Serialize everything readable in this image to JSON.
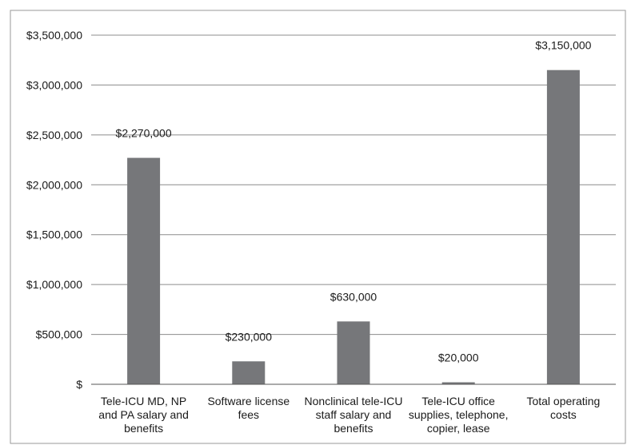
{
  "chart_data": {
    "type": "bar",
    "title": "",
    "xlabel": "",
    "ylabel": "",
    "categories": [
      [
        "Tele-ICU MD, NP",
        "and PA salary and",
        "benefits"
      ],
      [
        "Software license",
        "fees"
      ],
      [
        "Nonclinical tele-ICU",
        "staff salary and",
        "benefits"
      ],
      [
        "Tele-ICU office",
        "supplies, telephone,",
        "copier, lease"
      ],
      [
        "Total operating",
        "costs"
      ]
    ],
    "values": [
      2270000,
      230000,
      630000,
      20000,
      3150000
    ],
    "data_labels": [
      "$2,270,000",
      "$230,000",
      "$630,000",
      "$20,000",
      "$3,150,000"
    ],
    "ylim": [
      0,
      3500000
    ],
    "yticks": [
      0,
      500000,
      1000000,
      1500000,
      2000000,
      2500000,
      3000000,
      3500000
    ],
    "ytick_labels": [
      "$",
      "$500,000",
      "$1,000,000",
      "$1,500,000",
      "$2,000,000",
      "$2,500,000",
      "$3,000,000",
      "$3,500,000"
    ],
    "grid": true,
    "legend": "none",
    "colors": {
      "bar": "#76777a",
      "grid": "#8c8c8c",
      "axis": "#555555",
      "frame": "#9a9a9a"
    }
  }
}
